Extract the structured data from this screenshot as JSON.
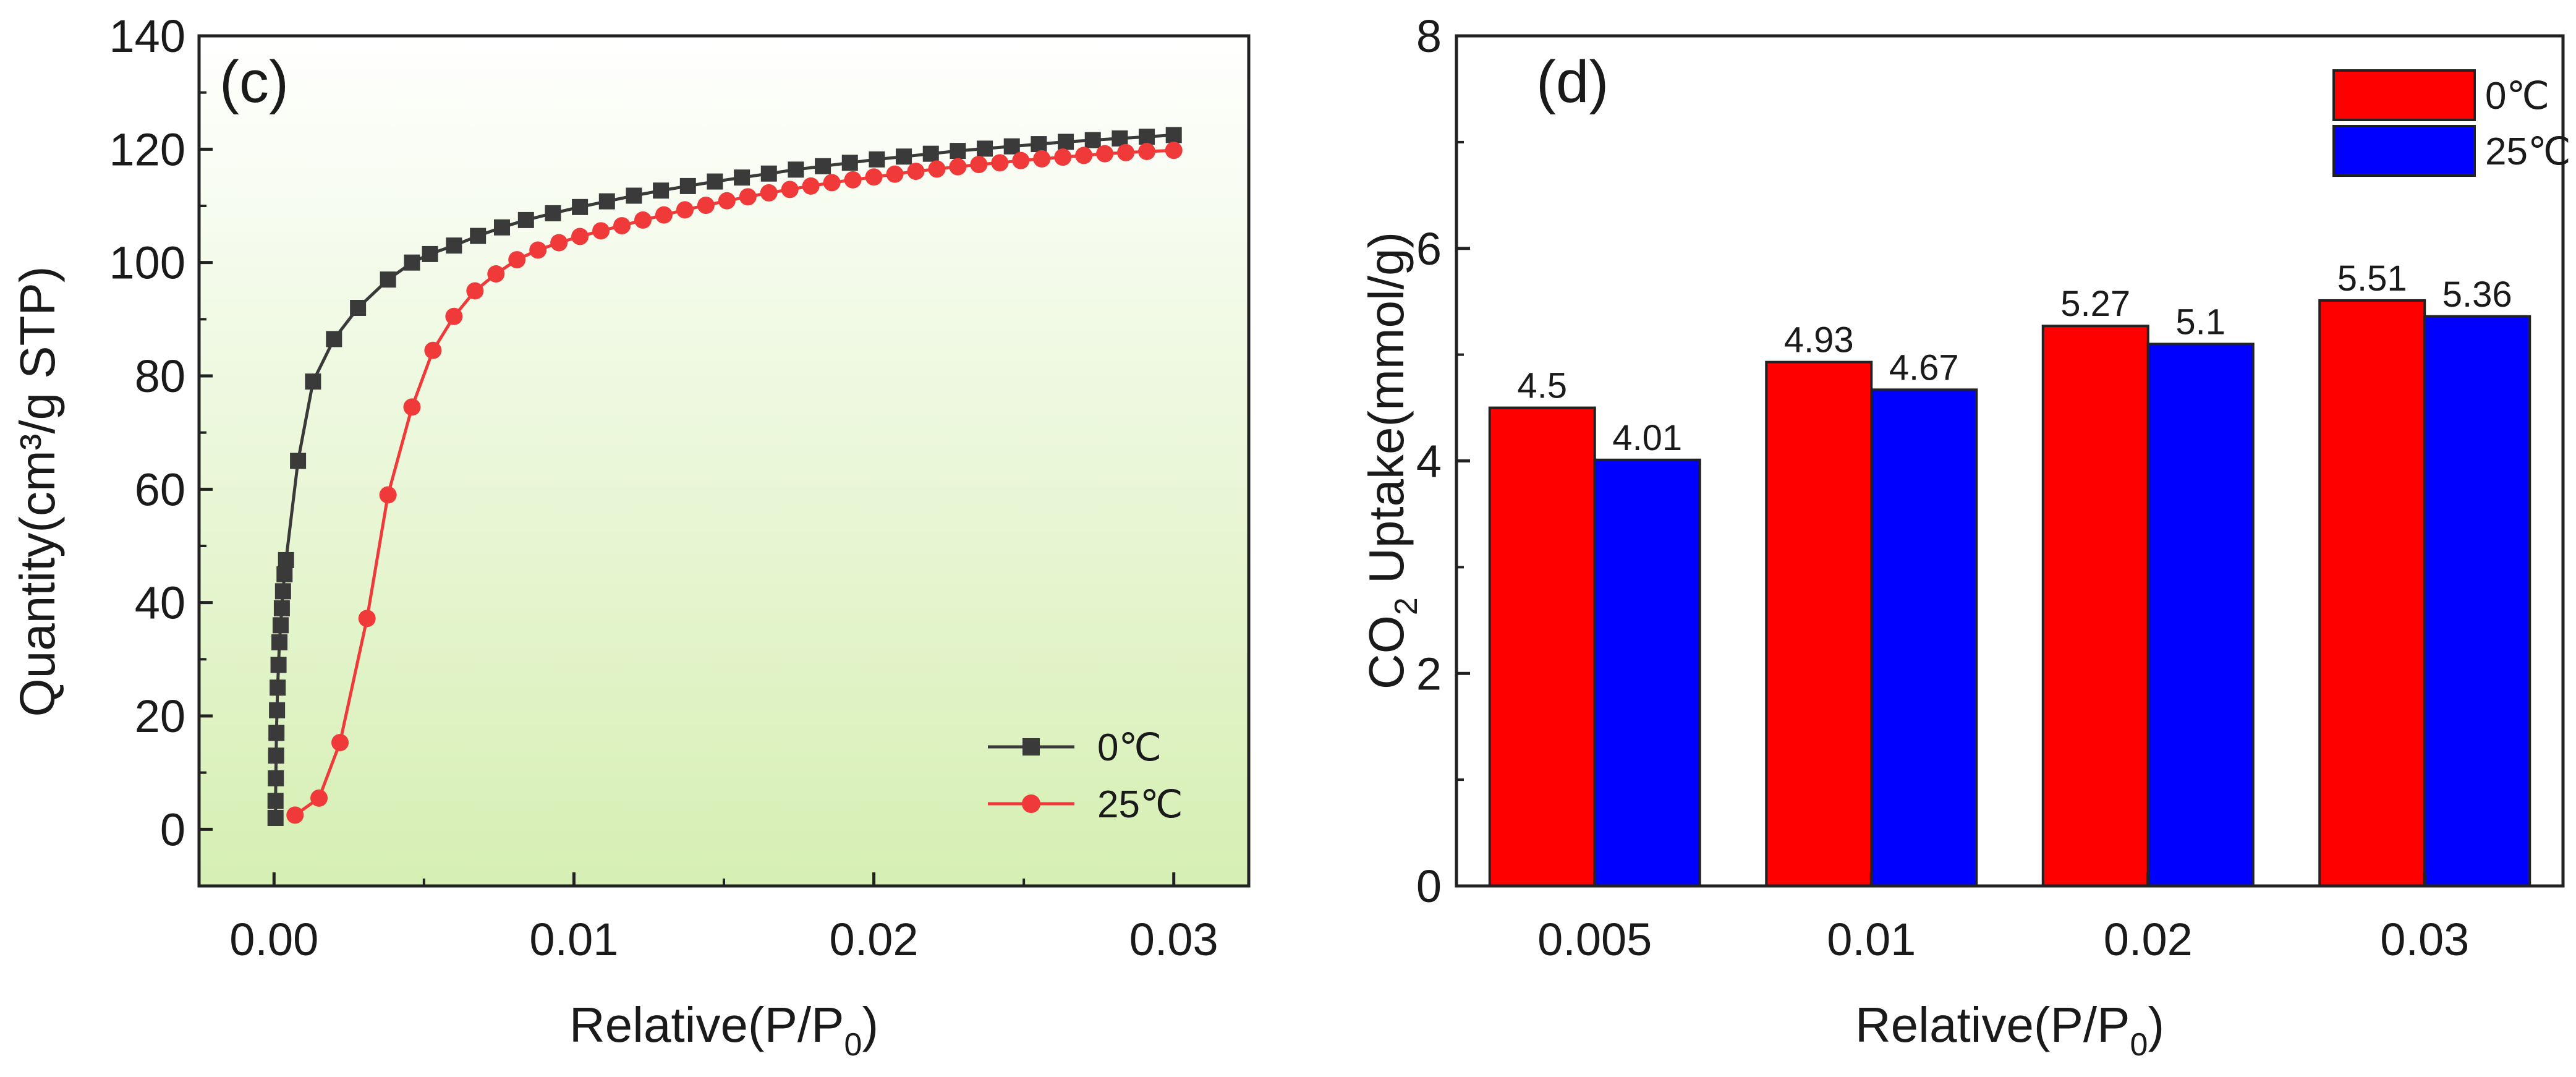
{
  "chart_data": [
    {
      "type": "line",
      "panel_label": "(c)",
      "xlabel": "Relative(P/P",
      "xlabel_sub": "0",
      "xlabel_end": ")",
      "ylabel": "Quantity(cm³/g STP)",
      "xlim": [
        -0.0025,
        0.0325
      ],
      "ylim": [
        -10,
        140
      ],
      "xticks": [
        0.0,
        0.01,
        0.02,
        0.03
      ],
      "xtick_labels": [
        "0.00",
        "0.01",
        "0.02",
        "0.03"
      ],
      "yticks": [
        0,
        20,
        40,
        60,
        80,
        100,
        120,
        140
      ],
      "ytick_labels": [
        "0",
        "20",
        "40",
        "60",
        "80",
        "100",
        "120",
        "140"
      ],
      "background": "light green vertical gradient",
      "legend_position": "bottom-right",
      "series": [
        {
          "name": "0℃",
          "color": "#3a3a3a",
          "marker": "square",
          "x": [
            5e-05,
            5e-05,
            6e-05,
            7e-05,
            8e-05,
            0.0001,
            0.00012,
            0.00015,
            0.00018,
            0.00022,
            0.00026,
            0.0003,
            0.00035,
            0.0004,
            0.0008,
            0.0013,
            0.002,
            0.0028,
            0.0038,
            0.0046,
            0.0052,
            0.006,
            0.0068,
            0.0076,
            0.0084,
            0.0093,
            0.0102,
            0.0111,
            0.012,
            0.0129,
            0.0138,
            0.0147,
            0.0156,
            0.0165,
            0.0174,
            0.0183,
            0.0192,
            0.0201,
            0.021,
            0.0219,
            0.0228,
            0.0237,
            0.0246,
            0.0255,
            0.0264,
            0.0273,
            0.0282,
            0.0291,
            0.03
          ],
          "y": [
            2,
            5,
            9,
            13,
            17,
            21,
            25,
            29,
            33,
            36,
            39,
            42,
            45,
            47.5,
            65,
            79,
            86.5,
            92,
            97,
            100,
            101.5,
            103,
            104.7,
            106.2,
            107.5,
            108.7,
            109.8,
            110.8,
            111.8,
            112.7,
            113.5,
            114.3,
            115,
            115.7,
            116.4,
            117,
            117.6,
            118.2,
            118.7,
            119.2,
            119.7,
            120.1,
            120.5,
            120.9,
            121.3,
            121.6,
            121.9,
            122.2,
            122.5
          ]
        },
        {
          "name": "25℃",
          "color": "#f03a3a",
          "marker": "circle",
          "x": [
            0.0007,
            0.0015,
            0.0022,
            0.0031,
            0.0038,
            0.0046,
            0.0053,
            0.006,
            0.0067,
            0.0074,
            0.0081,
            0.0088,
            0.0095,
            0.0102,
            0.0109,
            0.0116,
            0.0123,
            0.013,
            0.0137,
            0.0144,
            0.0151,
            0.0158,
            0.0165,
            0.0172,
            0.0179,
            0.0186,
            0.0193,
            0.02,
            0.0207,
            0.0214,
            0.0221,
            0.0228,
            0.0235,
            0.0242,
            0.0249,
            0.0256,
            0.0263,
            0.027,
            0.0277,
            0.0284,
            0.0291,
            0.03
          ],
          "y": [
            2.5,
            5.5,
            15.3,
            37.2,
            59,
            74.5,
            84.5,
            90.5,
            95,
            98,
            100.5,
            102.2,
            103.5,
            104.6,
            105.6,
            106.5,
            107.5,
            108.4,
            109.3,
            110.1,
            110.9,
            111.6,
            112.3,
            112.9,
            113.5,
            114.1,
            114.6,
            115.1,
            115.6,
            116.1,
            116.5,
            116.9,
            117.3,
            117.6,
            118,
            118.3,
            118.6,
            118.9,
            119.2,
            119.4,
            119.6,
            119.8
          ]
        }
      ]
    },
    {
      "type": "bar",
      "panel_label": "(d)",
      "xlabel": "Relative(P/P",
      "xlabel_sub": "0",
      "xlabel_end": ")",
      "ylabel_pre": "CO",
      "ylabel_sub": "2",
      "ylabel_post": " Uptake(mmol/g)",
      "ylim": [
        0,
        8
      ],
      "yticks": [
        0,
        2,
        4,
        6,
        8
      ],
      "ytick_labels": [
        "0",
        "2",
        "4",
        "6",
        "8"
      ],
      "categories": [
        "0.005",
        "0.01",
        "0.02",
        "0.03"
      ],
      "legend_position": "top-right",
      "series": [
        {
          "name": "0℃",
          "color": "#ff0000",
          "values": [
            4.5,
            4.93,
            5.27,
            5.51
          ],
          "labels": [
            "4.5",
            "4.93",
            "5.27",
            "5.51"
          ]
        },
        {
          "name": "25℃",
          "color": "#0000ff",
          "values": [
            4.01,
            4.67,
            5.1,
            5.36
          ],
          "labels": [
            "4.01",
            "4.67",
            "5.1",
            "5.36"
          ]
        }
      ]
    }
  ]
}
